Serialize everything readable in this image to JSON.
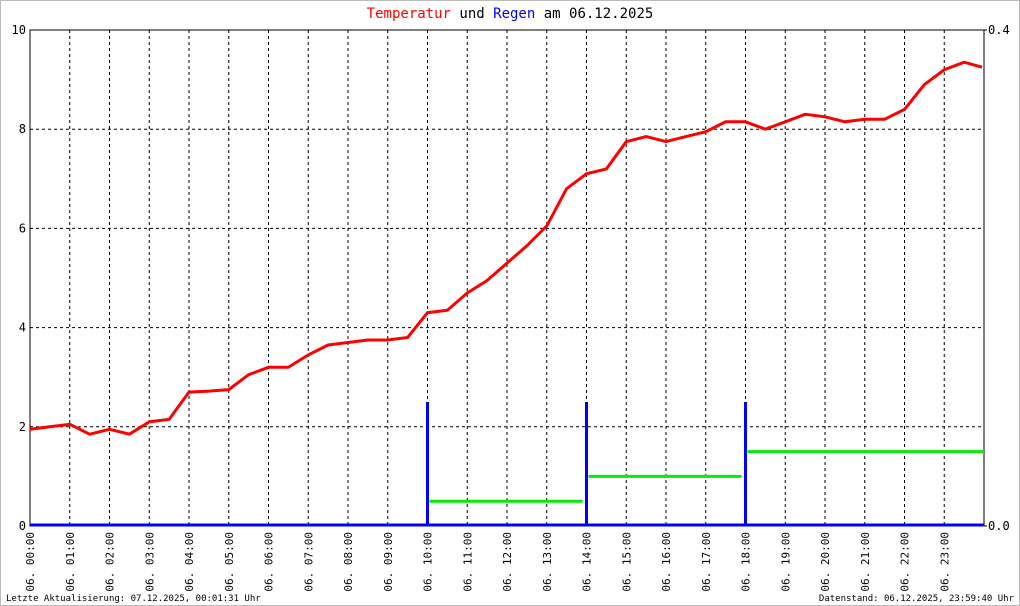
{
  "chart_data": {
    "type": "line",
    "title": [
      "Temperatur",
      "und",
      "Regen",
      "am 06.12.2025"
    ],
    "footer_left": "Letzte Aktualisierung: 07.12.2025, 00:01:31 Uhr",
    "footer_right": "Datenstand: 06.12.2025, 23:59:40 Uhr",
    "grid": true,
    "xlim": [
      0,
      24
    ],
    "xticks": [
      {
        "value": 0,
        "label": "06. 00:00"
      },
      {
        "value": 1,
        "label": "06. 01:00"
      },
      {
        "value": 2,
        "label": "06. 02:00"
      },
      {
        "value": 3,
        "label": "06. 03:00"
      },
      {
        "value": 4,
        "label": "06. 04:00"
      },
      {
        "value": 5,
        "label": "06. 05:00"
      },
      {
        "value": 6,
        "label": "06. 06:00"
      },
      {
        "value": 7,
        "label": "06. 07:00"
      },
      {
        "value": 8,
        "label": "06. 08:00"
      },
      {
        "value": 9,
        "label": "06. 09:00"
      },
      {
        "value": 10,
        "label": "06. 10:00"
      },
      {
        "value": 11,
        "label": "06. 11:00"
      },
      {
        "value": 12,
        "label": "06. 12:00"
      },
      {
        "value": 13,
        "label": "06. 13:00"
      },
      {
        "value": 14,
        "label": "06. 14:00"
      },
      {
        "value": 15,
        "label": "06. 15:00"
      },
      {
        "value": 16,
        "label": "06. 16:00"
      },
      {
        "value": 17,
        "label": "06. 17:00"
      },
      {
        "value": 18,
        "label": "06. 18:00"
      },
      {
        "value": 19,
        "label": "06. 19:00"
      },
      {
        "value": 20,
        "label": "06. 20:00"
      },
      {
        "value": 21,
        "label": "06. 21:00"
      },
      {
        "value": 22,
        "label": "06. 22:00"
      },
      {
        "value": 23,
        "label": "06. 23:00"
      }
    ],
    "ylim": [
      0,
      10
    ],
    "yticks": [
      0,
      2,
      4,
      6,
      8,
      10
    ],
    "y2lim": [
      0,
      0.4
    ],
    "y2ticks": [
      {
        "value": 0,
        "label": "0.0"
      },
      0.4
    ],
    "series": [
      {
        "name": "Temperatur",
        "type": "line",
        "color": "#ff0000",
        "x": [
          0,
          0.5,
          1,
          1.5,
          2,
          2.5,
          3,
          3.5,
          4,
          4.5,
          5,
          5.5,
          6,
          6.5,
          7,
          7.5,
          8,
          8.5,
          9,
          9.5,
          10,
          10.5,
          11,
          11.5,
          12,
          12.5,
          13,
          13.5,
          14,
          14.5,
          15,
          15.5,
          16,
          16.5,
          17,
          17.5,
          18,
          18.5,
          19,
          19.5,
          20,
          20.5,
          21,
          21.5,
          22,
          22.5,
          23,
          23.5,
          23.95
        ],
        "values": [
          1.95,
          2.0,
          2.05,
          1.85,
          1.95,
          1.85,
          2.1,
          2.15,
          2.7,
          2.72,
          2.75,
          3.05,
          3.2,
          3.2,
          3.45,
          3.65,
          3.7,
          3.75,
          3.75,
          3.8,
          4.3,
          4.35,
          4.7,
          4.95,
          5.3,
          5.65,
          6.05,
          6.8,
          7.1,
          7.2,
          7.75,
          7.85,
          7.75,
          7.85,
          7.95,
          8.15,
          8.15,
          8.0,
          8.15,
          8.3,
          8.25,
          8.15,
          8.2,
          8.2,
          8.4,
          8.9,
          9.2,
          9.35,
          9.25
        ]
      },
      {
        "name": "Regen",
        "type": "bar",
        "color": "#0000ff",
        "axis": "y2",
        "x": [
          10,
          14,
          18
        ],
        "values": [
          0.1,
          0.1,
          0.1
        ]
      },
      {
        "type": "line",
        "color": "#00ee00",
        "axis": "y2",
        "x": [
          10.05,
          13.9,
          13.95,
          14.05,
          17.9,
          17.95,
          18.05,
          24
        ],
        "values": [
          0.02,
          0.02,
          null,
          0.04,
          0.04,
          null,
          0.06,
          0.06
        ]
      }
    ]
  }
}
